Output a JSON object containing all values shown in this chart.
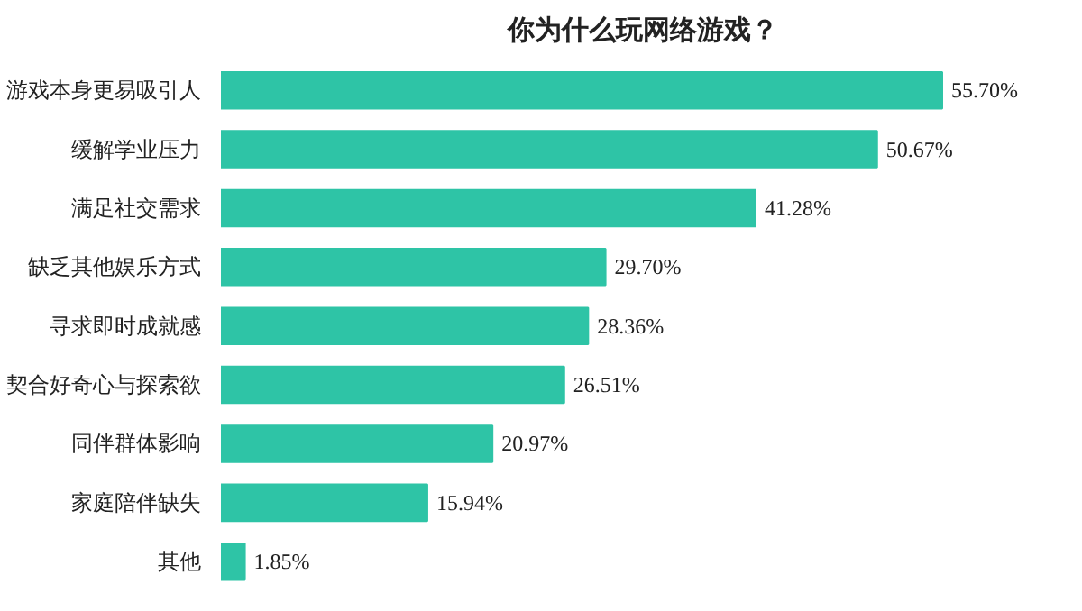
{
  "chart_data": {
    "type": "bar",
    "orientation": "horizontal",
    "title": "你为什么玩网络游戏？",
    "categories": [
      "游戏本身更易吸引人",
      "缓解学业压力",
      "满足社交需求",
      "缺乏其他娱乐方式",
      "寻求即时成就感",
      "契合好奇心与探索欲",
      "同伴群体影响",
      "家庭陪伴缺失",
      "其他"
    ],
    "values": [
      55.7,
      50.67,
      41.28,
      29.7,
      28.36,
      26.51,
      20.97,
      15.94,
      1.85
    ],
    "value_labels": [
      "55.70%",
      "50.67%",
      "41.28%",
      "29.70%",
      "28.36%",
      "26.51%",
      "20.97%",
      "15.94%",
      "1.85%"
    ],
    "color": "#2ec4a6",
    "grid": false
  }
}
